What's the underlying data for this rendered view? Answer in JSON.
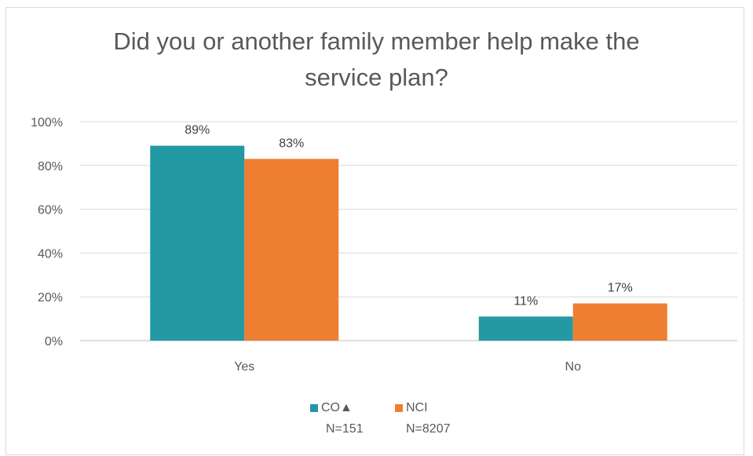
{
  "chart_data": {
    "type": "bar",
    "title": "Did you or another family member help make the service plan?",
    "title_lines": [
      "Did you or another family member help make the",
      "service plan?"
    ],
    "categories": [
      "Yes",
      "No"
    ],
    "series": [
      {
        "name": "CO▲",
        "values": [
          89,
          11
        ],
        "labels": [
          "89%",
          "11%"
        ],
        "color": "#2399a4"
      },
      {
        "name": "NCI",
        "values": [
          83,
          17
        ],
        "labels": [
          "83%",
          "17%"
        ],
        "color": "#ee7e32"
      }
    ],
    "ylim": [
      0,
      100
    ],
    "yticks": [
      "0%",
      "20%",
      "40%",
      "60%",
      "80%",
      "100%"
    ],
    "grid": true,
    "legend_position": "bottom",
    "legend_notes": [
      "N=151",
      "N=8207"
    ]
  }
}
